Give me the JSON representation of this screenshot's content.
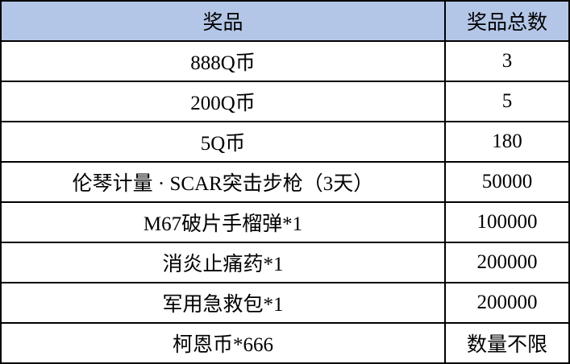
{
  "header_color": "#b4c6e7",
  "table": {
    "headers": [
      "奖品",
      "奖品总数"
    ],
    "rows": [
      [
        "888Q币",
        "3"
      ],
      [
        "200Q币",
        "5"
      ],
      [
        "5Q币",
        "180"
      ],
      [
        "伦琴计量 · SCAR突击步枪（3天）",
        "50000"
      ],
      [
        "M67破片手榴弹*1",
        "100000"
      ],
      [
        "消炎止痛药*1",
        "200000"
      ],
      [
        "军用急救包*1",
        "200000"
      ],
      [
        "柯恩币*666",
        "数量不限"
      ]
    ]
  }
}
